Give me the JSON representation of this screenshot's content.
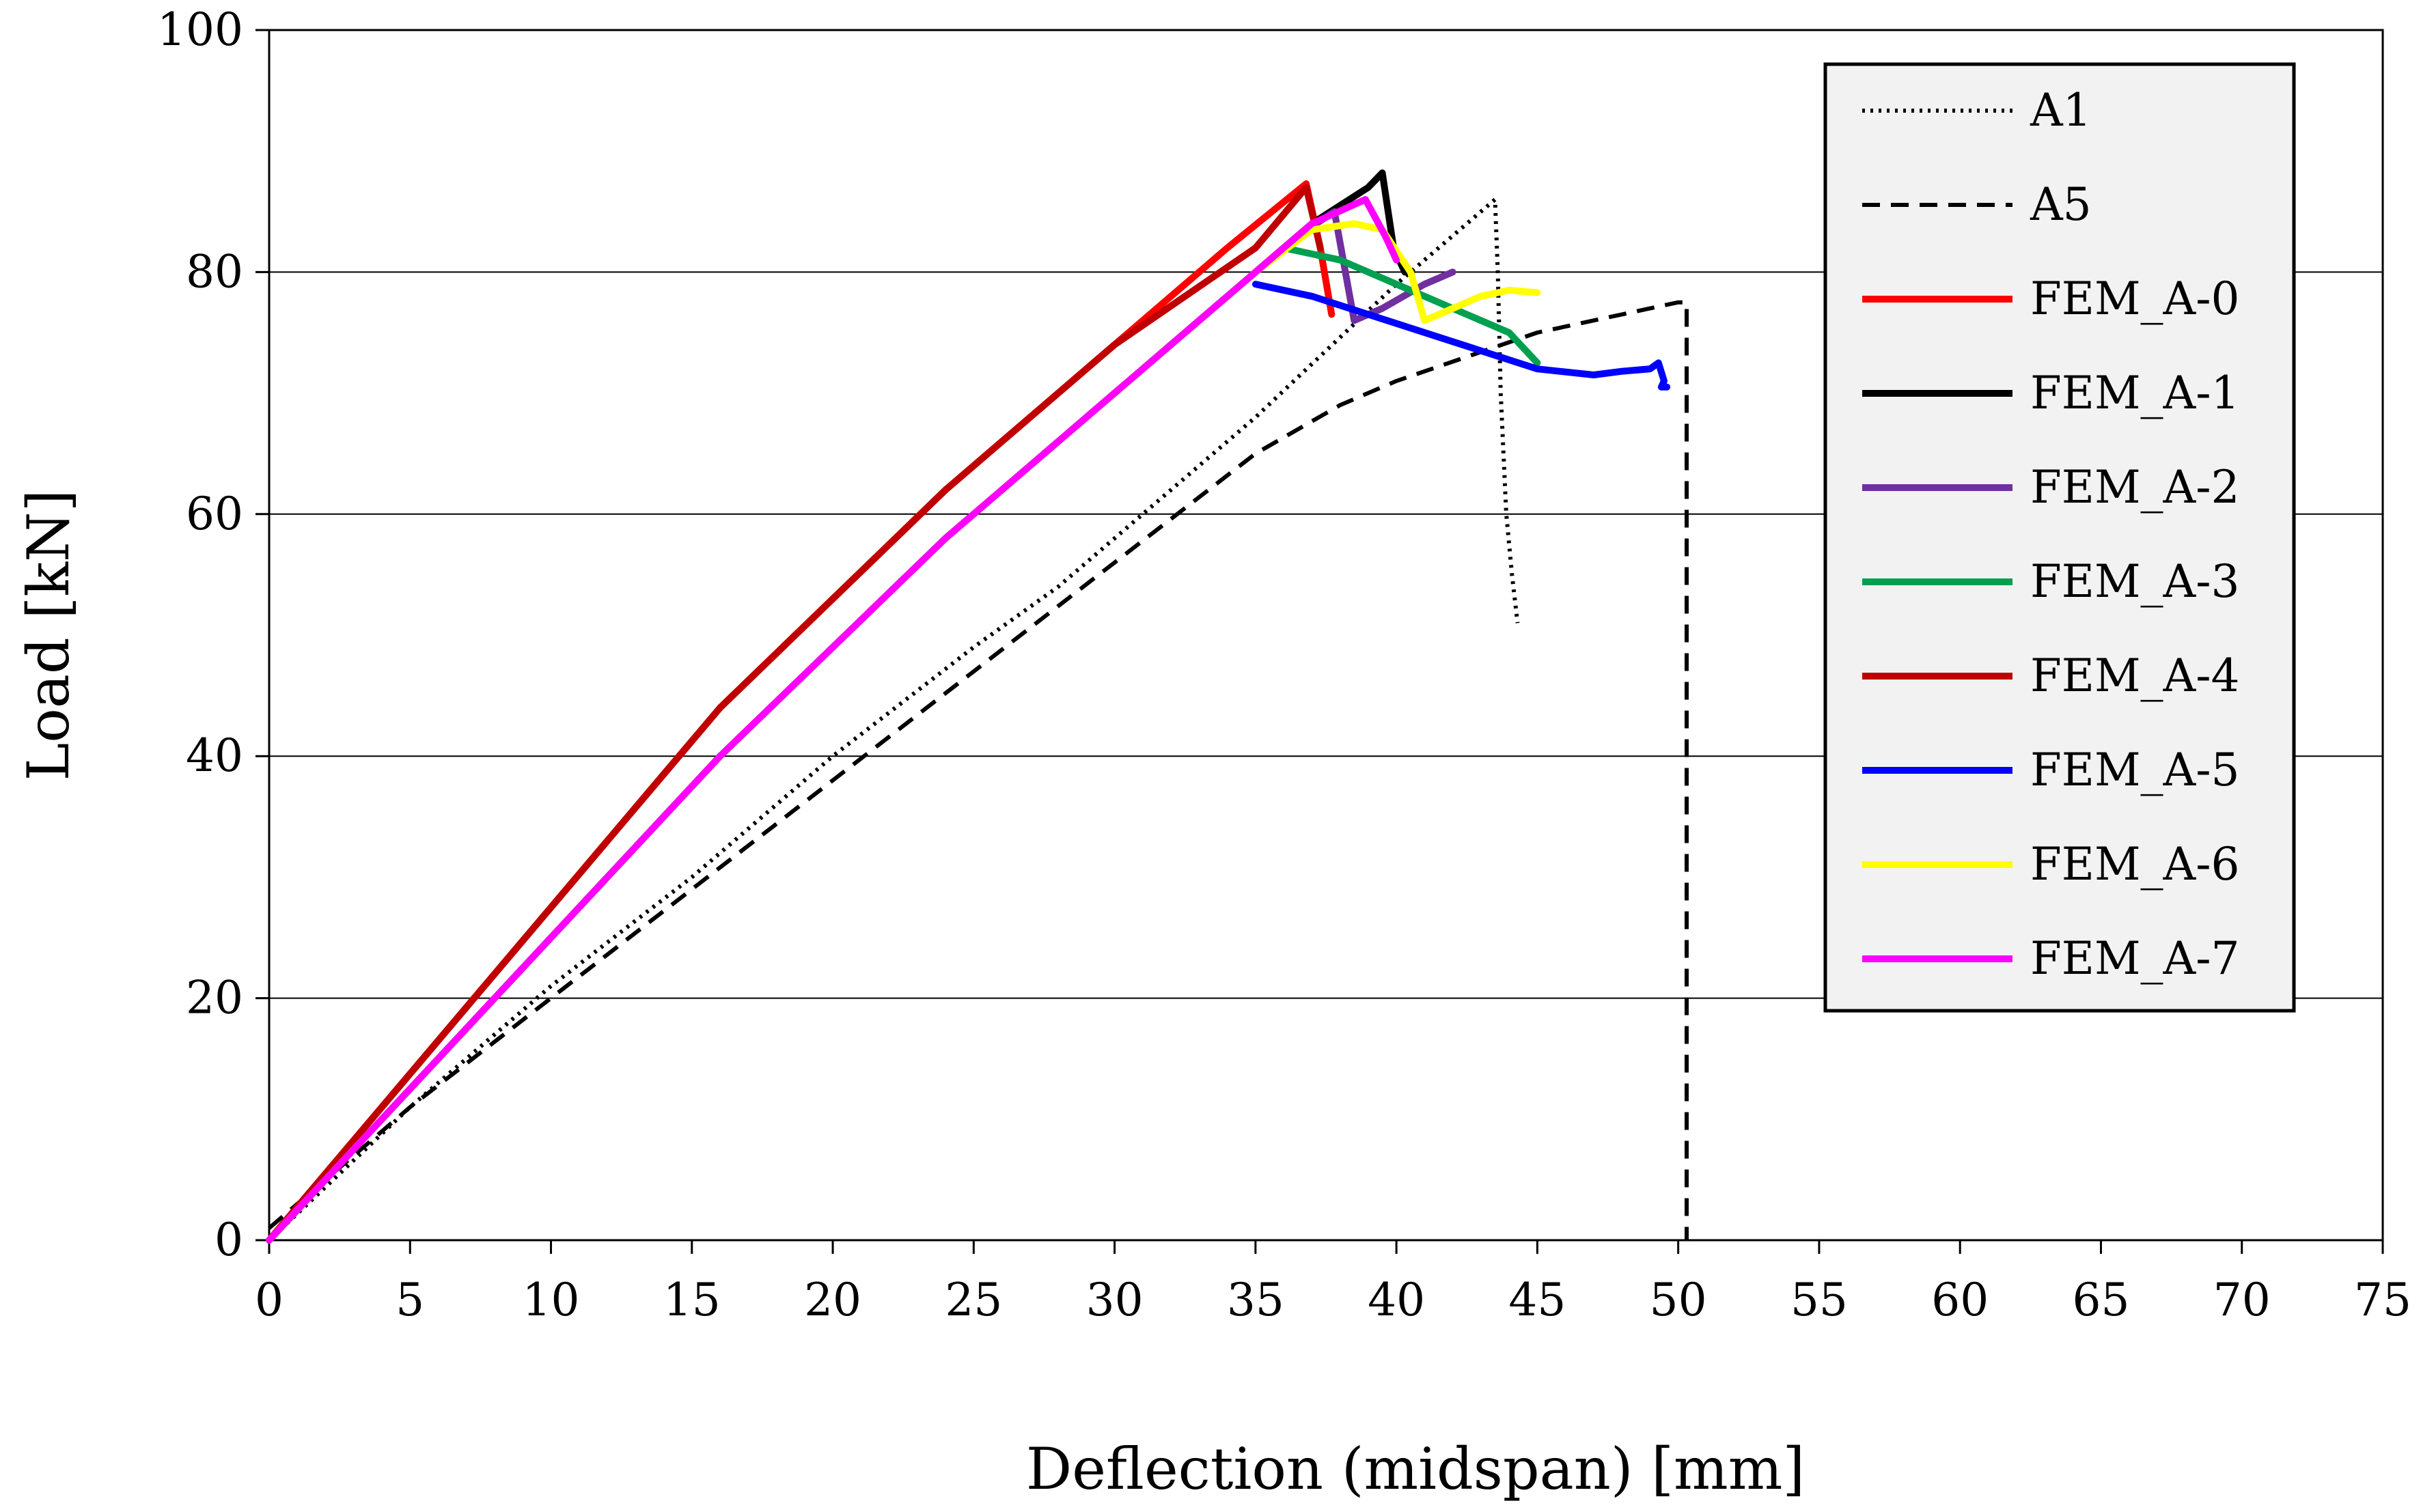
{
  "chart_data": {
    "type": "line",
    "title": "",
    "xlabel": "Deflection (midspan) [mm]",
    "ylabel": "Load [kN]",
    "xlim": [
      0,
      75
    ],
    "ylim": [
      0,
      100
    ],
    "x_ticks": [
      0,
      5,
      10,
      15,
      20,
      25,
      30,
      35,
      40,
      45,
      50,
      55,
      60,
      65,
      70,
      75
    ],
    "x_tick_labels": [
      "0",
      "5",
      "10",
      "15",
      "20",
      "25",
      "30",
      "35",
      "40",
      "45",
      "50",
      "55",
      "60",
      "65",
      "70",
      "75"
    ],
    "y_ticks": [
      0,
      20,
      40,
      60,
      80,
      100
    ],
    "y_tick_labels": [
      "0",
      "20",
      "40",
      "60",
      "80",
      "100"
    ],
    "gridlines": "horizontal",
    "legend_position": "top-right",
    "series": [
      {
        "name": "A1",
        "color": "#000000",
        "style": "dotted",
        "x": [
          0,
          5,
          10,
          15,
          20,
          25,
          28,
          30,
          35,
          40,
          43.5,
          43.6,
          43.7,
          43.9,
          44.1,
          44.3
        ],
        "y": [
          0,
          11,
          21,
          30,
          40,
          49,
          54,
          58,
          68,
          79,
          86,
          80,
          70,
          60,
          55,
          51
        ]
      },
      {
        "name": "A5",
        "color": "#000000",
        "style": "dashed",
        "x": [
          0,
          5,
          10,
          15,
          20,
          25,
          30,
          35,
          38,
          40,
          45,
          48,
          50,
          50.3,
          50.3,
          50.3
        ],
        "y": [
          1,
          11,
          20,
          29,
          38,
          47,
          56,
          65,
          69,
          71,
          75,
          76.5,
          77.5,
          77.5,
          30,
          0
        ]
      },
      {
        "name": "FEM_A-0",
        "color": "#ff0000",
        "style": "solid",
        "x": [
          0,
          8,
          16,
          24,
          30,
          34,
          36.8,
          37.3,
          37.7
        ],
        "y": [
          0,
          22,
          44,
          62,
          74,
          82,
          87.3,
          82,
          76.5
        ]
      },
      {
        "name": "FEM_A-1",
        "color": "#000000",
        "style": "solid",
        "x": [
          0,
          8,
          16,
          24,
          30,
          35,
          37,
          39,
          39.5,
          39.9,
          40.3
        ],
        "y": [
          0,
          20,
          40,
          58,
          70,
          80,
          84,
          87,
          88.2,
          82,
          80
        ]
      },
      {
        "name": "FEM_A-2",
        "color": "#7030a0",
        "style": "solid",
        "x": [
          0,
          8,
          16,
          24,
          30,
          35,
          36.5,
          37.8,
          38.5,
          39.5,
          41,
          42
        ],
        "y": [
          0,
          20,
          40,
          58,
          70,
          80,
          83,
          85,
          76,
          77,
          79,
          80
        ]
      },
      {
        "name": "FEM_A-3",
        "color": "#00a050",
        "style": "solid",
        "x": [
          0,
          8,
          16,
          24,
          30,
          35,
          36,
          38,
          40,
          42,
          44,
          45
        ],
        "y": [
          0,
          20,
          40,
          58,
          70,
          80,
          82,
          81,
          79,
          77,
          75,
          72.5
        ]
      },
      {
        "name": "FEM_A-4",
        "color": "#c00000",
        "style": "solid",
        "x": [
          0,
          8,
          16,
          24,
          30,
          35,
          36.8,
          37.3
        ],
        "y": [
          0,
          22,
          44,
          62,
          74,
          82,
          87,
          82
        ]
      },
      {
        "name": "FEM_A-5",
        "color": "#0000ff",
        "style": "solid",
        "x": [
          35,
          37,
          39,
          41,
          43,
          45,
          47,
          48,
          49,
          49.3,
          49.5,
          49.4,
          49.6
        ],
        "y": [
          79,
          78,
          76.5,
          75,
          73.5,
          72,
          71.5,
          71.8,
          72,
          72.5,
          71,
          70.5,
          70.5
        ]
      },
      {
        "name": "FEM_A-6",
        "color": "#ffff00",
        "style": "solid",
        "x": [
          0,
          8,
          16,
          24,
          30,
          35,
          37,
          38.5,
          39.5,
          40.5,
          41,
          42,
          43,
          44,
          45
        ],
        "y": [
          0,
          20,
          40,
          58,
          70,
          80,
          83.5,
          84,
          83.5,
          80,
          76,
          77,
          78,
          78.5,
          78.3
        ]
      },
      {
        "name": "FEM_A-7",
        "color": "#ff00ff",
        "style": "solid",
        "x": [
          0,
          8,
          16,
          24,
          30,
          35,
          37,
          38.9,
          39.6,
          40
        ],
        "y": [
          0,
          20,
          40,
          58,
          70,
          80,
          84,
          86,
          83,
          81
        ]
      }
    ]
  }
}
